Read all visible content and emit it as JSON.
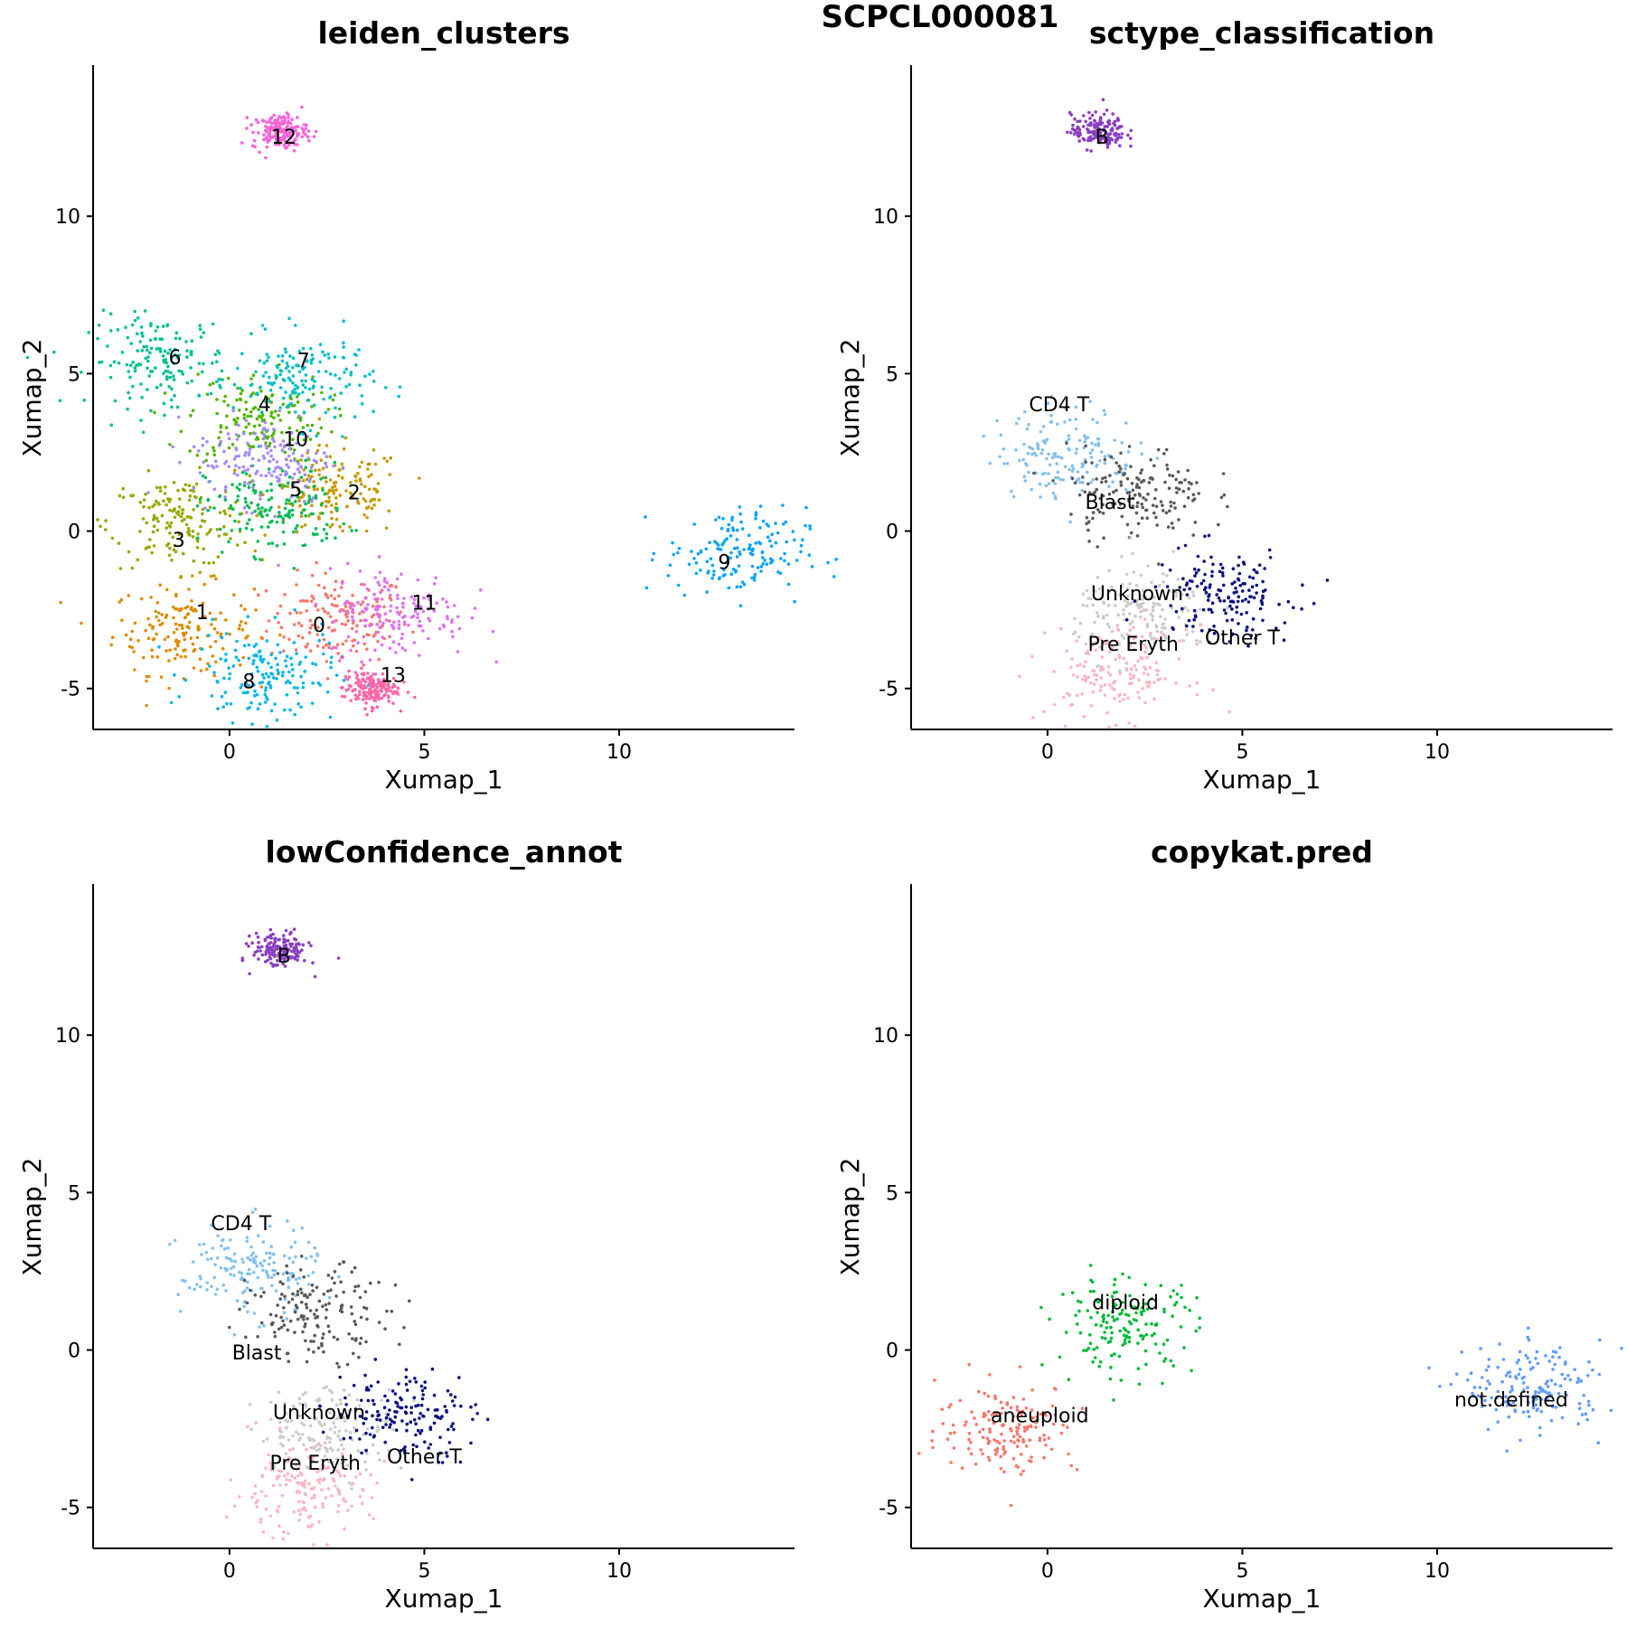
{
  "figure": {
    "title": "SCPCL000081"
  },
  "chart_data": [
    {
      "type": "scatter",
      "title": "leiden_clusters",
      "xlabel": "Xumap_1",
      "ylabel": "Xumap_2",
      "xlim": [
        -3.5,
        14.5
      ],
      "ylim": [
        -6.3,
        14.8
      ],
      "xticks": [
        "0",
        "5",
        "10"
      ],
      "yticks": [
        "-5",
        "0",
        "5",
        "10"
      ],
      "groups": [
        {
          "name": "0",
          "color": "#F8766D",
          "center": [
            2.8,
            -2.8
          ],
          "label_pos": [
            2.3,
            -3.2
          ]
        },
        {
          "name": "1",
          "color": "#DE8C00",
          "center": [
            -1.2,
            -3.1
          ],
          "label_pos": [
            -0.7,
            -2.8
          ]
        },
        {
          "name": "2",
          "color": "#C49A00",
          "center": [
            2.7,
            1.2
          ],
          "label_pos": [
            3.2,
            1.0
          ]
        },
        {
          "name": "3",
          "color": "#99A800",
          "center": [
            -1.3,
            0.3
          ],
          "label_pos": [
            -1.3,
            -0.5
          ]
        },
        {
          "name": "4",
          "color": "#53B400",
          "center": [
            0.7,
            3.6
          ],
          "label_pos": [
            0.9,
            3.8
          ]
        },
        {
          "name": "5",
          "color": "#00BC56",
          "center": [
            1.2,
            0.7
          ],
          "label_pos": [
            1.7,
            1.1
          ]
        },
        {
          "name": "6",
          "color": "#00C094",
          "center": [
            -1.8,
            5.4
          ],
          "label_pos": [
            -1.4,
            5.3
          ]
        },
        {
          "name": "7",
          "color": "#00BFC4",
          "center": [
            1.9,
            4.8
          ],
          "label_pos": [
            1.9,
            5.2
          ]
        },
        {
          "name": "8",
          "color": "#00B6EB",
          "center": [
            0.9,
            -4.6
          ],
          "label_pos": [
            0.5,
            -5.0
          ]
        },
        {
          "name": "9",
          "color": "#06A4FF",
          "center": [
            13.0,
            -0.7
          ],
          "label_pos": [
            12.7,
            -1.2
          ]
        },
        {
          "name": "10",
          "color": "#A58AFF",
          "center": [
            0.9,
            2.3
          ],
          "label_pos": [
            1.7,
            2.7
          ]
        },
        {
          "name": "11",
          "color": "#DF70F8",
          "center": [
            4.3,
            -2.6
          ],
          "label_pos": [
            5.0,
            -2.5
          ]
        },
        {
          "name": "12",
          "color": "#FB61D7",
          "center": [
            1.3,
            12.7
          ],
          "label_pos": [
            1.4,
            12.3
          ]
        },
        {
          "name": "13",
          "color": "#FF66A8",
          "center": [
            3.6,
            -5.0
          ],
          "label_pos": [
            4.2,
            -4.8
          ]
        }
      ]
    },
    {
      "type": "scatter",
      "title": "sctype_classification",
      "xlabel": "Xumap_1",
      "ylabel": "Xumap_2",
      "xlim": [
        -3.5,
        14.5
      ],
      "ylim": [
        -6.3,
        14.8
      ],
      "xticks": [
        "0",
        "5",
        "10"
      ],
      "yticks": [
        "-5",
        "0",
        "5",
        "10"
      ],
      "groups": [
        {
          "name": "B",
          "color": "#8B3FC0",
          "center": [
            1.3,
            12.7
          ],
          "label_pos": [
            1.4,
            12.3
          ]
        },
        {
          "name": "CD4 T",
          "color": "#85C1EC",
          "center": [
            0.5,
            2.5
          ],
          "label_pos": [
            0.3,
            3.8
          ]
        },
        {
          "name": "Blast",
          "color": "#595959",
          "center": [
            2.3,
            1.2
          ],
          "label_pos": [
            1.6,
            0.7
          ]
        },
        {
          "name": "Unknown",
          "color": "#CBCBCB",
          "center": [
            2.5,
            -2.6
          ],
          "label_pos": [
            2.3,
            -2.2
          ]
        },
        {
          "name": "Other T",
          "color": "#0B0F80",
          "center": [
            4.5,
            -2.0
          ],
          "label_pos": [
            5.0,
            -3.6
          ]
        },
        {
          "name": "Pre Eryth",
          "color": "#FBB6C4",
          "center": [
            1.8,
            -4.5
          ],
          "label_pos": [
            2.2,
            -3.8
          ]
        }
      ]
    },
    {
      "type": "scatter",
      "title": "lowConfidence_annot",
      "xlabel": "Xumap_1",
      "ylabel": "Xumap_2",
      "xlim": [
        -3.5,
        14.5
      ],
      "ylim": [
        -6.3,
        14.8
      ],
      "xticks": [
        "0",
        "5",
        "10"
      ],
      "yticks": [
        "-5",
        "0",
        "5",
        "10"
      ],
      "groups": [
        {
          "name": "B",
          "color": "#8B3FC0",
          "center": [
            1.3,
            12.7
          ],
          "label_pos": [
            1.4,
            12.3
          ]
        },
        {
          "name": "CD4 T",
          "color": "#85C1EC",
          "center": [
            0.5,
            2.5
          ],
          "label_pos": [
            0.3,
            3.8
          ]
        },
        {
          "name": "Blast",
          "color": "#595959",
          "center": [
            2.3,
            1.2
          ],
          "label_pos": [
            0.7,
            -0.3
          ]
        },
        {
          "name": "Unknown",
          "color": "#CBCBCB",
          "center": [
            2.5,
            -2.6
          ],
          "label_pos": [
            2.3,
            -2.2
          ]
        },
        {
          "name": "Other T",
          "color": "#0B0F80",
          "center": [
            4.5,
            -2.0
          ],
          "label_pos": [
            5.0,
            -3.6
          ]
        },
        {
          "name": "Pre Eryth",
          "color": "#FBB6C4",
          "center": [
            1.8,
            -4.5
          ],
          "label_pos": [
            2.2,
            -3.8
          ]
        }
      ]
    },
    {
      "type": "scatter",
      "title": "copykat.pred",
      "xlabel": "Xumap_1",
      "ylabel": "Xumap_2",
      "xlim": [
        -3.5,
        14.5
      ],
      "ylim": [
        -6.3,
        14.8
      ],
      "xticks": [
        "0",
        "5",
        "10"
      ],
      "yticks": [
        "-5",
        "0",
        "5",
        "10"
      ],
      "groups": [
        {
          "name": "diploid",
          "color": "#00BA38",
          "center": [
            2.0,
            0.8
          ],
          "label_pos": [
            2.0,
            1.3
          ]
        },
        {
          "name": "aneuploid",
          "color": "#F8766D",
          "center": [
            -1.0,
            -2.5
          ],
          "label_pos": [
            -0.2,
            -2.3
          ]
        },
        {
          "name": "not.defined",
          "color": "#619CFF",
          "center": [
            12.5,
            -1.2
          ],
          "label_pos": [
            11.9,
            -1.8
          ]
        }
      ]
    }
  ]
}
